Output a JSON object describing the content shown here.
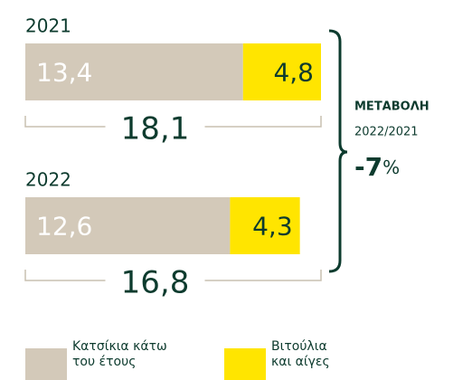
{
  "chart_data": {
    "type": "bar",
    "orientation": "horizontal",
    "stacked": true,
    "categories": [
      "2021",
      "2022"
    ],
    "series": [
      {
        "name": "Κατσίκια κάτω του έτους",
        "color": "#d3c9b9",
        "values": [
          13.4,
          12.6
        ],
        "value_labels": [
          "13,4",
          "12,6"
        ]
      },
      {
        "name": "Βιτούλια και αίγες",
        "color": "#ffe500",
        "values": [
          4.8,
          4.3
        ],
        "value_labels": [
          "4,8",
          "4,3"
        ]
      }
    ],
    "totals": [
      18.1,
      16.8
    ],
    "total_labels": [
      "18,1",
      "16,8"
    ],
    "xlim": [
      0,
      18.2
    ],
    "change": {
      "title": "ΜΕΤΑΒΟΛΗ",
      "period": "2022/2021",
      "value": -7,
      "unit": "%"
    }
  }
}
